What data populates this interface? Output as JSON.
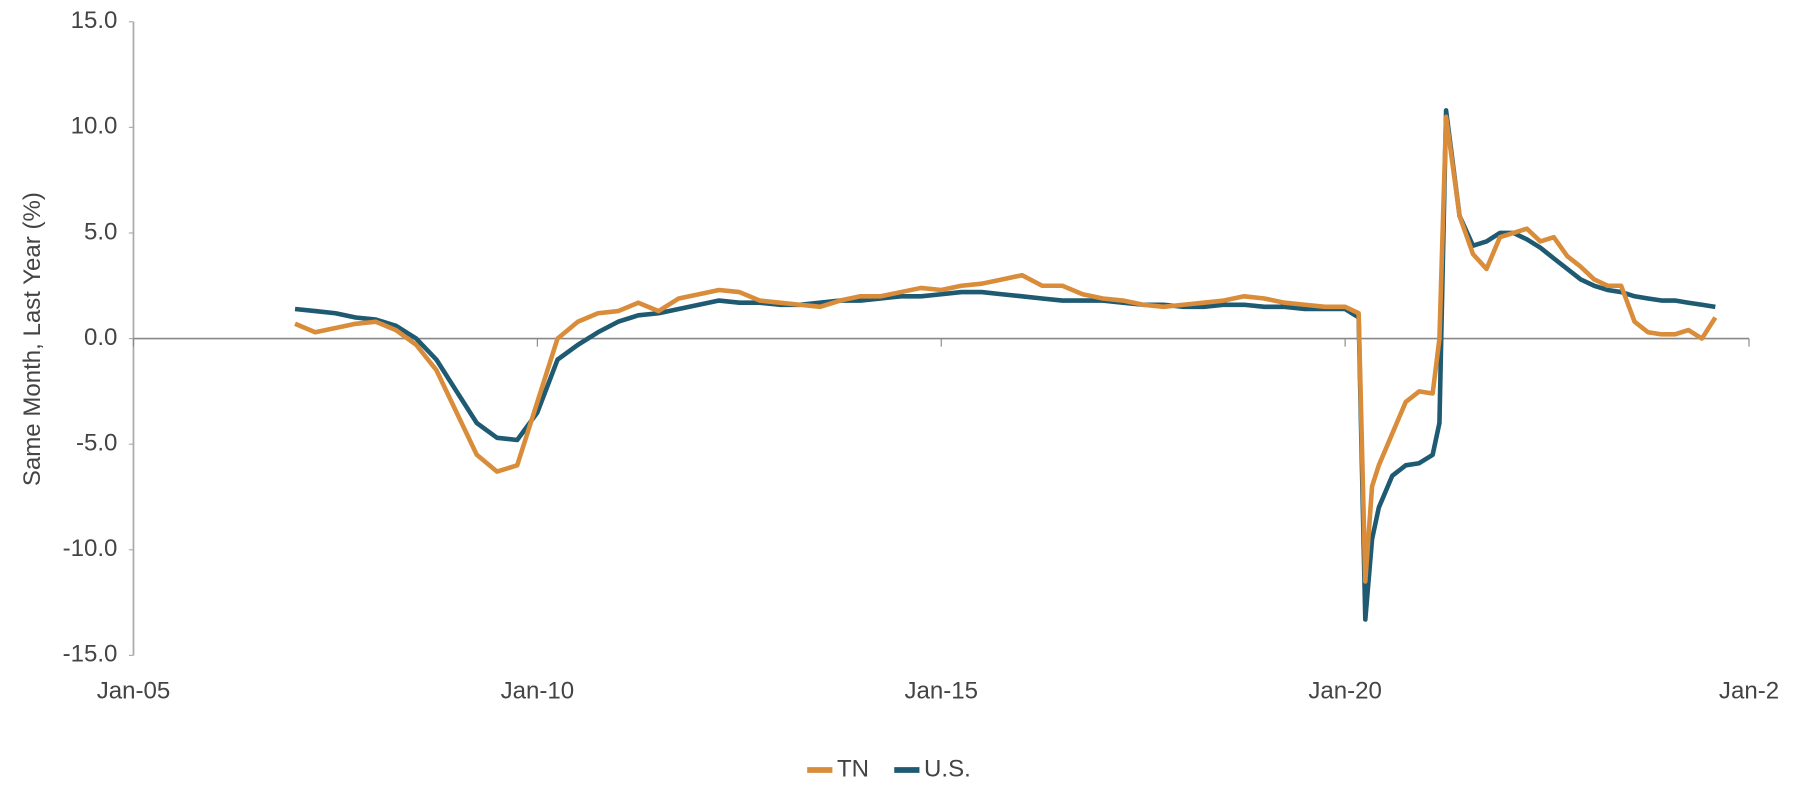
{
  "chart_data": {
    "type": "line",
    "y_label": "Same Month, Last Year (%)",
    "x": [
      "2007-01",
      "2007-04",
      "2007-07",
      "2007-10",
      "2008-01",
      "2008-04",
      "2008-07",
      "2008-10",
      "2009-01",
      "2009-04",
      "2009-07",
      "2009-10",
      "2010-01",
      "2010-04",
      "2010-07",
      "2010-10",
      "2011-01",
      "2011-04",
      "2011-07",
      "2011-10",
      "2012-01",
      "2012-04",
      "2012-07",
      "2012-10",
      "2013-01",
      "2013-04",
      "2013-07",
      "2013-10",
      "2014-01",
      "2014-04",
      "2014-07",
      "2014-10",
      "2015-01",
      "2015-04",
      "2015-07",
      "2015-10",
      "2016-01",
      "2016-04",
      "2016-07",
      "2016-10",
      "2017-01",
      "2017-04",
      "2017-07",
      "2017-10",
      "2018-01",
      "2018-04",
      "2018-07",
      "2018-10",
      "2019-01",
      "2019-04",
      "2019-07",
      "2019-10",
      "2020-01",
      "2020-03",
      "2020-04",
      "2020-05",
      "2020-06",
      "2020-08",
      "2020-10",
      "2020-12",
      "2021-02",
      "2021-03",
      "2021-04",
      "2021-06",
      "2021-08",
      "2021-10",
      "2021-12",
      "2022-02",
      "2022-04",
      "2022-06",
      "2022-08",
      "2022-10",
      "2022-12",
      "2023-02",
      "2023-04",
      "2023-06",
      "2023-08",
      "2023-10",
      "2023-12",
      "2024-02",
      "2024-04",
      "2024-06",
      "2024-08"
    ],
    "series": [
      {
        "name": "TN",
        "color": "#d98c3a",
        "values": [
          0.7,
          0.3,
          0.5,
          0.7,
          0.8,
          0.4,
          -0.3,
          -1.5,
          -3.5,
          -5.5,
          -6.3,
          -6.0,
          -3.0,
          0.0,
          0.8,
          1.2,
          1.3,
          1.7,
          1.3,
          1.9,
          2.1,
          2.3,
          2.2,
          1.8,
          1.7,
          1.6,
          1.5,
          1.8,
          2.0,
          2.0,
          2.2,
          2.4,
          2.3,
          2.5,
          2.6,
          2.8,
          3.0,
          2.5,
          2.5,
          2.1,
          1.9,
          1.8,
          1.6,
          1.5,
          1.6,
          1.7,
          1.8,
          2.0,
          1.9,
          1.7,
          1.6,
          1.5,
          1.5,
          1.2,
          -11.5,
          -7.0,
          -6.0,
          -4.5,
          -3.0,
          -2.5,
          -2.6,
          0.0,
          10.5,
          5.8,
          4.0,
          3.3,
          4.8,
          5.0,
          5.2,
          4.6,
          4.8,
          3.9,
          3.4,
          2.8,
          2.5,
          2.5,
          0.8,
          0.3,
          0.2,
          0.2,
          0.4,
          0.0,
          1.0
        ]
      },
      {
        "name": "U.S.",
        "color": "#1f5a73",
        "values": [
          1.4,
          1.3,
          1.2,
          1.0,
          0.9,
          0.6,
          0.0,
          -1.0,
          -2.5,
          -4.0,
          -4.7,
          -4.8,
          -3.5,
          -1.0,
          -0.3,
          0.3,
          0.8,
          1.1,
          1.2,
          1.4,
          1.6,
          1.8,
          1.7,
          1.7,
          1.6,
          1.6,
          1.7,
          1.8,
          1.8,
          1.9,
          2.0,
          2.0,
          2.1,
          2.2,
          2.2,
          2.1,
          2.0,
          1.9,
          1.8,
          1.8,
          1.8,
          1.7,
          1.6,
          1.6,
          1.5,
          1.5,
          1.6,
          1.6,
          1.5,
          1.5,
          1.4,
          1.4,
          1.4,
          1.0,
          -13.3,
          -9.5,
          -8.0,
          -6.5,
          -6.0,
          -5.9,
          -5.5,
          -4.0,
          10.8,
          5.8,
          4.4,
          4.6,
          5.0,
          5.0,
          4.7,
          4.3,
          3.8,
          3.3,
          2.8,
          2.5,
          2.3,
          2.2,
          2.0,
          1.9,
          1.8,
          1.8,
          1.7,
          1.6,
          1.5
        ]
      }
    ],
    "xlim": [
      "2005-01",
      "2025-01"
    ],
    "xticks": [
      {
        "value": "2005-01",
        "label": "Jan-05"
      },
      {
        "value": "2010-01",
        "label": "Jan-10"
      },
      {
        "value": "2015-01",
        "label": "Jan-15"
      },
      {
        "value": "2020-01",
        "label": "Jan-20"
      },
      {
        "value": "2025-01",
        "label": "Jan-2"
      }
    ],
    "ylim": [
      -15,
      15
    ],
    "yticks": [
      {
        "value": -15,
        "label": "-15.0"
      },
      {
        "value": -10,
        "label": "-10.0"
      },
      {
        "value": -5,
        "label": "-5.0"
      },
      {
        "value": 0,
        "label": "0.0"
      },
      {
        "value": 5,
        "label": "5.0"
      },
      {
        "value": 10,
        "label": "10.0"
      },
      {
        "value": 15,
        "label": "15.0"
      }
    ],
    "legend": "bottom"
  }
}
